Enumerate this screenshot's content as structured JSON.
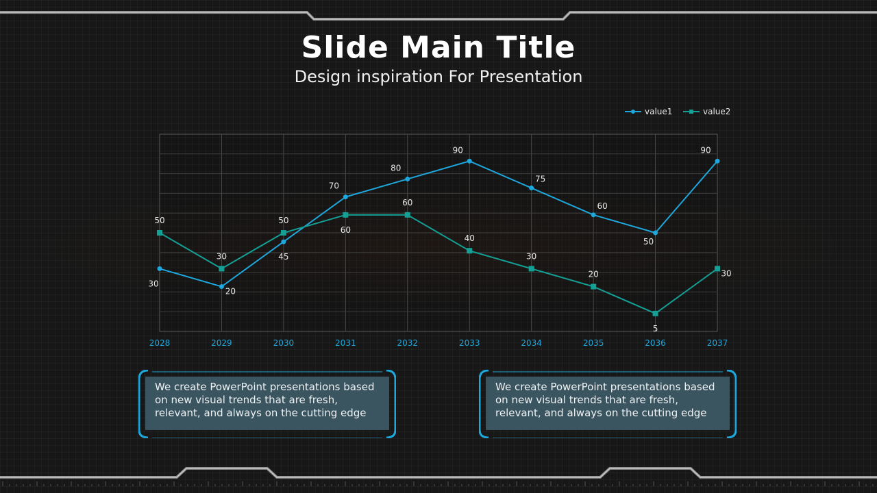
{
  "title": "Slide Main Title",
  "subtitle": "Design inspiration For Presentation",
  "notes": [
    {
      "text": "We create PowerPoint presentations based on new visual trends that are fresh, relevant, and always on the cutting edge"
    },
    {
      "text": "We create PowerPoint presentations based on new visual trends that are fresh, relevant, and always on the cutting edge"
    }
  ],
  "colors": {
    "value1": "#1ea7dc",
    "value2": "#14a095",
    "accent": "#1ea7dc",
    "axis_label": "#1ea7dc"
  },
  "chart_data": {
    "type": "line",
    "x": [
      "2028",
      "2029",
      "2030",
      "2031",
      "2032",
      "2033",
      "2034",
      "2035",
      "2036",
      "2037"
    ],
    "series": [
      {
        "name": "value1",
        "values": [
          30,
          20,
          45,
          70,
          80,
          90,
          75,
          60,
          50,
          90
        ]
      },
      {
        "name": "value2",
        "values": [
          50,
          30,
          50,
          60,
          60,
          40,
          30,
          20,
          5,
          30
        ]
      }
    ],
    "ylim": [
      -5,
      105
    ],
    "grid": true,
    "legend": "top-right",
    "title": "",
    "xlabel": "",
    "ylabel": ""
  }
}
